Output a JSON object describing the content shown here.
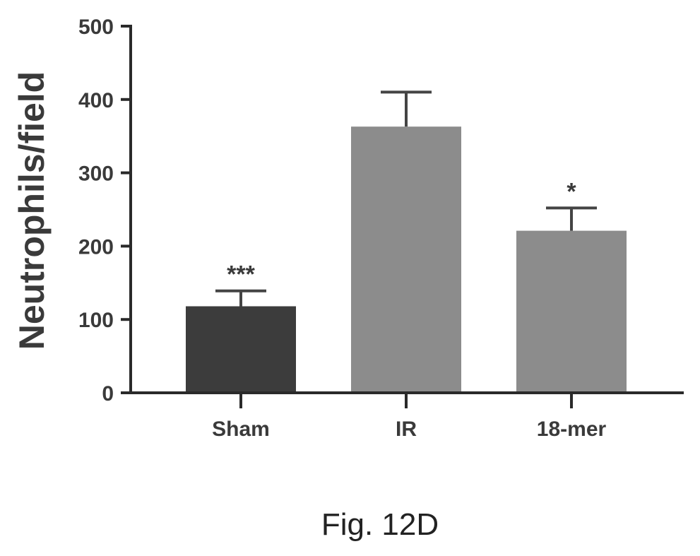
{
  "chart_data": {
    "type": "bar",
    "title": "",
    "xlabel": "",
    "ylabel": "Neutrophils/field",
    "categories": [
      "Sham",
      "IR",
      "18-mer"
    ],
    "values": [
      118,
      363,
      221
    ],
    "errors": [
      21,
      47,
      31
    ],
    "significance": [
      "***",
      "",
      "*"
    ],
    "ylim": [
      0,
      500
    ],
    "yticks": [
      "0",
      "100",
      "200",
      "300",
      "400",
      "500"
    ],
    "bar_colors": [
      "#3c3c3c",
      "#8c8c8c",
      "#8c8c8c"
    ],
    "grid": false,
    "legend": "none"
  },
  "caption": "Fig. 12D"
}
